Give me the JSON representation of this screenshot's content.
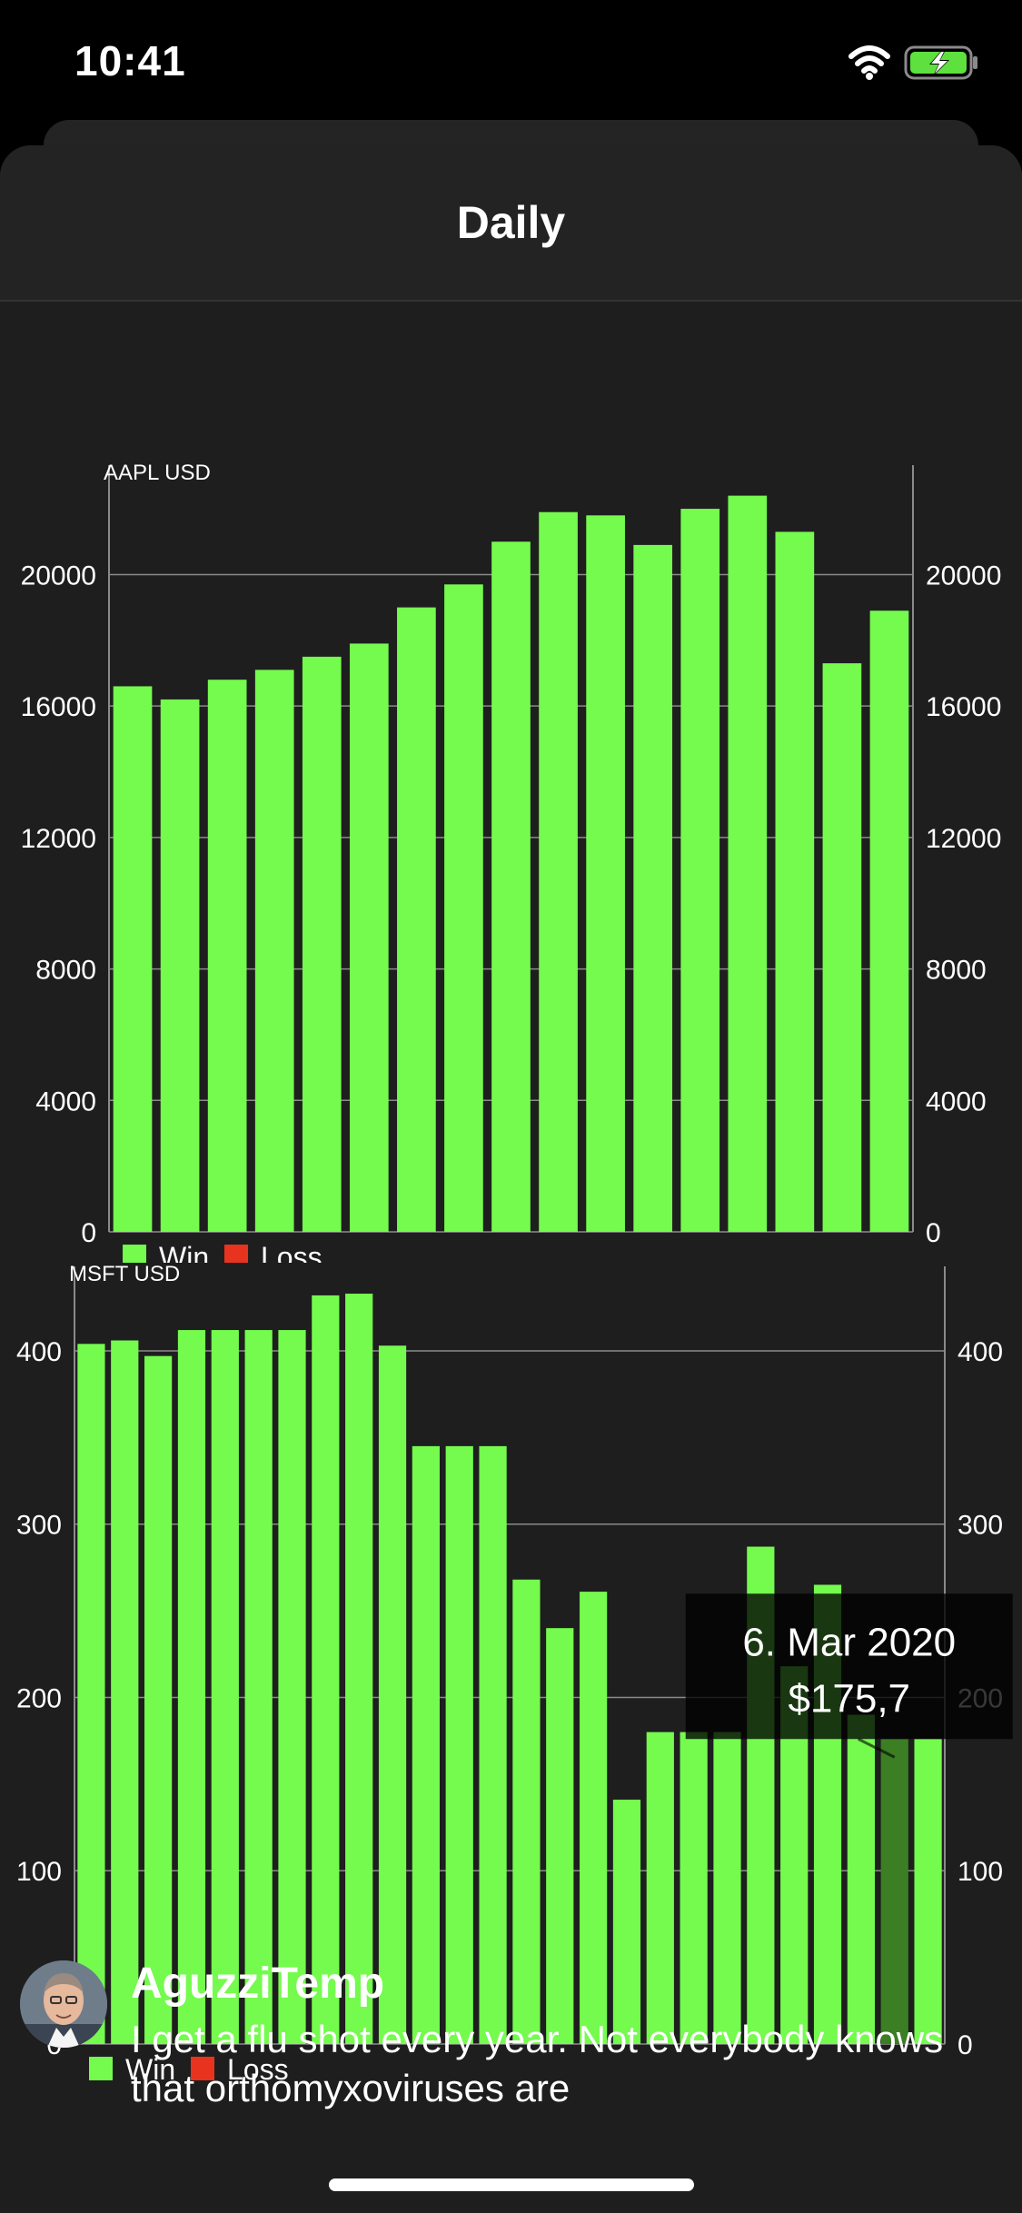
{
  "status": {
    "time": "10:41"
  },
  "header": {
    "title": "Daily"
  },
  "charts": [
    {
      "title": "AAPL USD",
      "legend": {
        "win": "Win",
        "loss": "Loss"
      },
      "colors": {
        "win": "#74fb4e",
        "loss": "#e8331f"
      }
    },
    {
      "title": "MSFT USD",
      "legend": {
        "win": "Win",
        "loss": "Loss"
      },
      "colors": {
        "win": "#74fb4e",
        "loss": "#e8331f"
      },
      "tooltip": {
        "date": "6. Mar 2020",
        "value": "$175,7"
      }
    }
  ],
  "chart_data": [
    {
      "type": "bar",
      "title": "AAPL USD",
      "values": [
        16600,
        16200,
        16800,
        17100,
        17500,
        17900,
        19000,
        19700,
        21000,
        21900,
        21800,
        20900,
        22000,
        22400,
        21300,
        17300,
        18900
      ],
      "ylim": [
        0,
        22500
      ],
      "yticks": [
        "0",
        "4000",
        "8000",
        "12000",
        "16000",
        "20000"
      ],
      "ytick_values": [
        0,
        4000,
        8000,
        12000,
        16000,
        20000
      ],
      "grid": true,
      "legend": [
        "Win",
        "Loss"
      ],
      "legend_position": "bottom-left"
    },
    {
      "type": "bar",
      "title": "MSFT USD",
      "values": [
        404,
        406,
        397,
        412,
        412,
        412,
        412,
        432,
        433,
        403,
        345,
        345,
        345,
        268,
        240,
        261,
        141,
        180,
        180,
        180,
        287,
        218,
        265,
        190,
        176,
        176
      ],
      "highlight_index": 24,
      "ylim": [
        0,
        433
      ],
      "yticks": [
        "0",
        "100",
        "200",
        "300",
        "400"
      ],
      "ytick_values": [
        0,
        100,
        200,
        300,
        400
      ],
      "grid": true,
      "legend": [
        "Win",
        "Loss"
      ],
      "legend_position": "bottom-left"
    }
  ],
  "tweet": {
    "user": "AguzziTemp",
    "text": "I get a flu shot every year. Not everybody knows that orthomyxoviruses are"
  }
}
